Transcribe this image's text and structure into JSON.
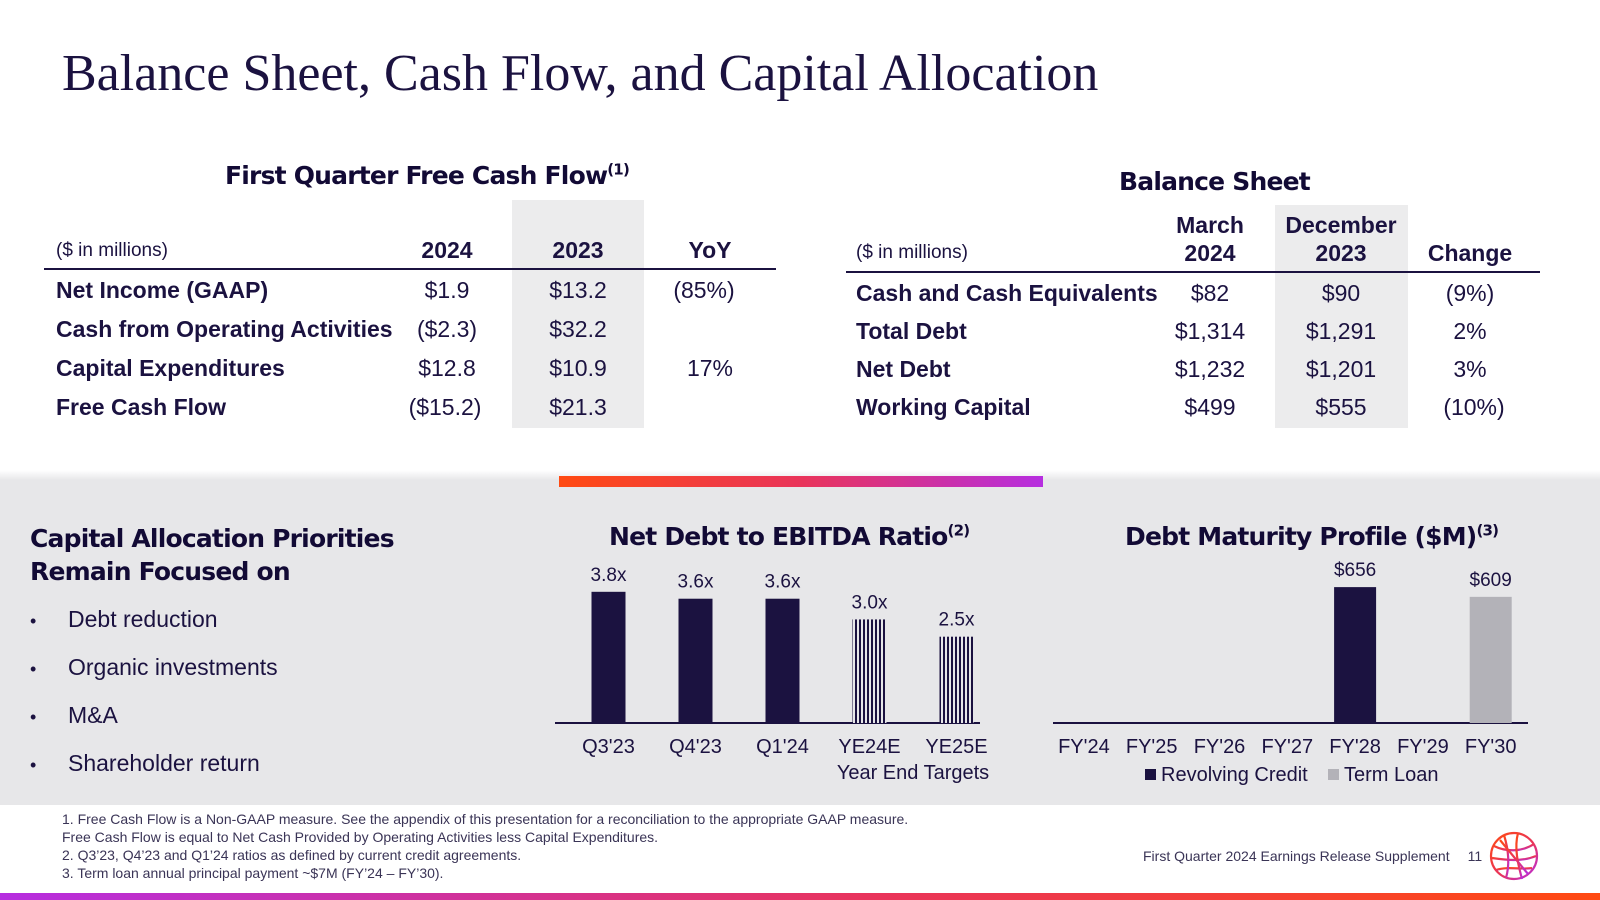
{
  "title": "Balance Sheet, Cash Flow, and Capital Allocation",
  "fcf": {
    "heading": "First Quarter Free Cash Flow",
    "heading_sup": "(1)",
    "units": "($ in millions)",
    "columns": [
      "2024",
      "2023",
      "YoY"
    ],
    "rows": [
      {
        "label": "Net Income (GAAP)",
        "values": [
          "$1.9",
          "$13.2",
          "(85%)"
        ]
      },
      {
        "label": "Cash from Operating Activities",
        "values": [
          "($2.3)",
          "$32.2",
          ""
        ]
      },
      {
        "label": "Capital Expenditures",
        "values": [
          "$12.8",
          "$10.9",
          "17%"
        ]
      },
      {
        "label": "Free Cash Flow",
        "values": [
          "($15.2)",
          "$21.3",
          ""
        ]
      }
    ]
  },
  "balance": {
    "heading": "Balance Sheet",
    "units": "($ in millions)",
    "columns": [
      {
        "line1": "March",
        "line2": "2024"
      },
      {
        "line1": "December",
        "line2": "2023"
      },
      {
        "line1": "",
        "line2": "Change"
      }
    ],
    "rows": [
      {
        "label": "Cash and Cash Equivalents",
        "values": [
          "$82",
          "$90",
          "(9%)"
        ]
      },
      {
        "label": "Total Debt",
        "values": [
          "$1,314",
          "$1,291",
          "2%"
        ]
      },
      {
        "label": "Net Debt",
        "values": [
          "$1,232",
          "$1,201",
          "3%"
        ]
      },
      {
        "label": "Working Capital",
        "values": [
          "$499",
          "$555",
          "(10%)"
        ]
      }
    ]
  },
  "priorities": {
    "heading": "Capital Allocation Priorities Remain Focused on",
    "bullet_glyph": "•",
    "items": [
      "Debt reduction",
      "Organic investments",
      "M&A",
      "Shareholder return"
    ]
  },
  "chart_data": [
    {
      "type": "bar",
      "title": "Net Debt to EBITDA Ratio",
      "title_sup": "(2)",
      "categories": [
        "Q3'23",
        "Q4'23",
        "Q1'24",
        "YE24E",
        "YE25E"
      ],
      "values": [
        3.8,
        3.6,
        3.6,
        3.0,
        2.5
      ],
      "labels": [
        "3.8x",
        "3.6x",
        "3.6x",
        "3.0x",
        "2.5x"
      ],
      "hatched": [
        false,
        false,
        false,
        true,
        true
      ],
      "group_label": "Year End Targets",
      "ylim": [
        0,
        4.2
      ],
      "xlabel": "",
      "ylabel": ""
    },
    {
      "type": "bar",
      "title": "Debt Maturity Profile ($M)",
      "title_sup": "(3)",
      "categories": [
        "FY'24",
        "FY'25",
        "FY'26",
        "FY'27",
        "FY'28",
        "FY'29",
        "FY'30"
      ],
      "series": [
        {
          "name": "Revolving Credit",
          "values": [
            0,
            0,
            0,
            0,
            656,
            0,
            0
          ]
        },
        {
          "name": "Term Loan",
          "values": [
            0,
            0,
            0,
            0,
            0,
            0,
            609
          ]
        }
      ],
      "labels": [
        "",
        "",
        "",
        "",
        "$656",
        "",
        "$609"
      ],
      "legend": "bottom",
      "ylim": [
        0,
        700
      ],
      "xlabel": "",
      "ylabel": ""
    }
  ],
  "colors": {
    "navy": "#1b1240",
    "term_loan": "#b3b2b8",
    "shade": "#ececed",
    "band": "#e7e7e9"
  },
  "footnotes": [
    "1. Free Cash Flow is a Non-GAAP measure. See the appendix of this presentation for a reconciliation to the appropriate GAAP measure.",
    "Free Cash Flow is equal to Net Cash Provided by Operating Activities less Capital Expenditures.",
    "2. Q3’23, Q4’23 and Q1’24 ratios as defined by current credit agreements.",
    "3. Term loan annual principal payment ~$7M (FY’24 – FY’30)."
  ],
  "footer": {
    "text": "First Quarter 2024 Earnings Release Supplement",
    "page": "11"
  }
}
